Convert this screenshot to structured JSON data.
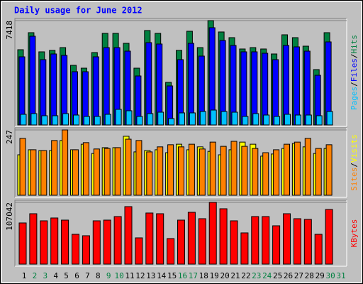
{
  "chart_data": {
    "type": "bar",
    "title": "Daily usage for June 2012",
    "title_color": "#0000ff",
    "separator": "/",
    "categories": [
      "1",
      "2",
      "3",
      "4",
      "5",
      "6",
      "7",
      "8",
      "9",
      "10",
      "11",
      "12",
      "13",
      "14",
      "15",
      "16",
      "17",
      "18",
      "19",
      "20",
      "21",
      "22",
      "23",
      "24",
      "25",
      "26",
      "27",
      "28",
      "29",
      "30",
      "31"
    ],
    "category_colors": [
      "#000000",
      "#008040",
      "#008040",
      "#000000",
      "#000000",
      "#000000",
      "#000000",
      "#000000",
      "#008040",
      "#008040",
      "#000000",
      "#000000",
      "#000000",
      "#000000",
      "#000000",
      "#008040",
      "#008040",
      "#000000",
      "#000000",
      "#000000",
      "#000000",
      "#000000",
      "#008040",
      "#008040",
      "#000000",
      "#000000",
      "#000000",
      "#000000",
      "#000000",
      "#008040",
      "#008040"
    ],
    "grid": true,
    "panels": [
      {
        "ylim": [
          0,
          7418
        ],
        "yticks": [
          7418
        ],
        "series": [
          {
            "name": "Hits",
            "color": "#008040",
            "values": [
              5349,
              6560,
              5198,
              5299,
              5500,
              4239,
              4037,
              5147,
              6510,
              6510,
              5803,
              4037,
              6712,
              6510,
              3028,
              5299,
              6661,
              5500,
              7418,
              6611,
              6207,
              5400,
              5500,
              5400,
              5046,
              6409,
              6207,
              5601,
              3936,
              6560,
              null
            ]
          },
          {
            "name": "Files",
            "color": "#0000ff",
            "values": [
              4844,
              6308,
              4643,
              5046,
              4945,
              3785,
              3785,
              4844,
              5500,
              5500,
              5248,
              3482,
              5854,
              5753,
              2775,
              4643,
              5803,
              4895,
              6913,
              6005,
              5652,
              5198,
              5198,
              5097,
              4643,
              5652,
              5551,
              5248,
              3532,
              5904,
              null
            ]
          },
          {
            "name": "Pages",
            "color": "#00c0ff",
            "values": [
              757,
              807,
              656,
              656,
              807,
              706,
              606,
              606,
              757,
              1110,
              1009,
              606,
              807,
              908,
              454,
              858,
              858,
              959,
              1060,
              959,
              908,
              606,
              807,
              706,
              606,
              757,
              706,
              706,
              656,
              959,
              null
            ]
          }
        ]
      },
      {
        "ylim": [
          0,
          247
        ],
        "yticks": [
          247
        ],
        "series": [
          {
            "name": "Visits",
            "color": "#ffff00",
            "values": [
              153,
              172,
              169,
              169,
              207,
              172,
              193,
              158,
              180,
              180,
              223,
              164,
              169,
              172,
              161,
              193,
              172,
              183,
              166,
              153,
              172,
              201,
              193,
              148,
              156,
              177,
              196,
              183,
              158,
              177,
              null
            ]
          },
          {
            "name": "Sites",
            "color": "#ff8000",
            "values": [
              215,
              172,
              169,
              207,
              247,
              172,
              199,
              175,
              177,
              180,
              212,
              207,
              164,
              183,
              191,
              183,
              193,
              175,
              201,
              185,
              204,
              185,
              177,
              161,
              172,
              193,
              201,
              215,
              177,
              191,
              null
            ]
          }
        ]
      },
      {
        "ylim": [
          0,
          107042
        ],
        "yticks": [
          107042
        ],
        "series": [
          {
            "name": "KBytes",
            "color": "#ff0000",
            "values": [
              71363,
              87357,
              75052,
              79974,
              76283,
              51676,
              49215,
              75052,
              76283,
              82435,
              99660,
              45524,
              88587,
              87357,
              44293,
              76283,
              89818,
              78744,
              107042,
              95969,
              75052,
              54136,
              82435,
              82435,
              66440,
              87357,
              78744,
              77514,
              51676,
              94739,
              null
            ]
          }
        ]
      }
    ]
  }
}
